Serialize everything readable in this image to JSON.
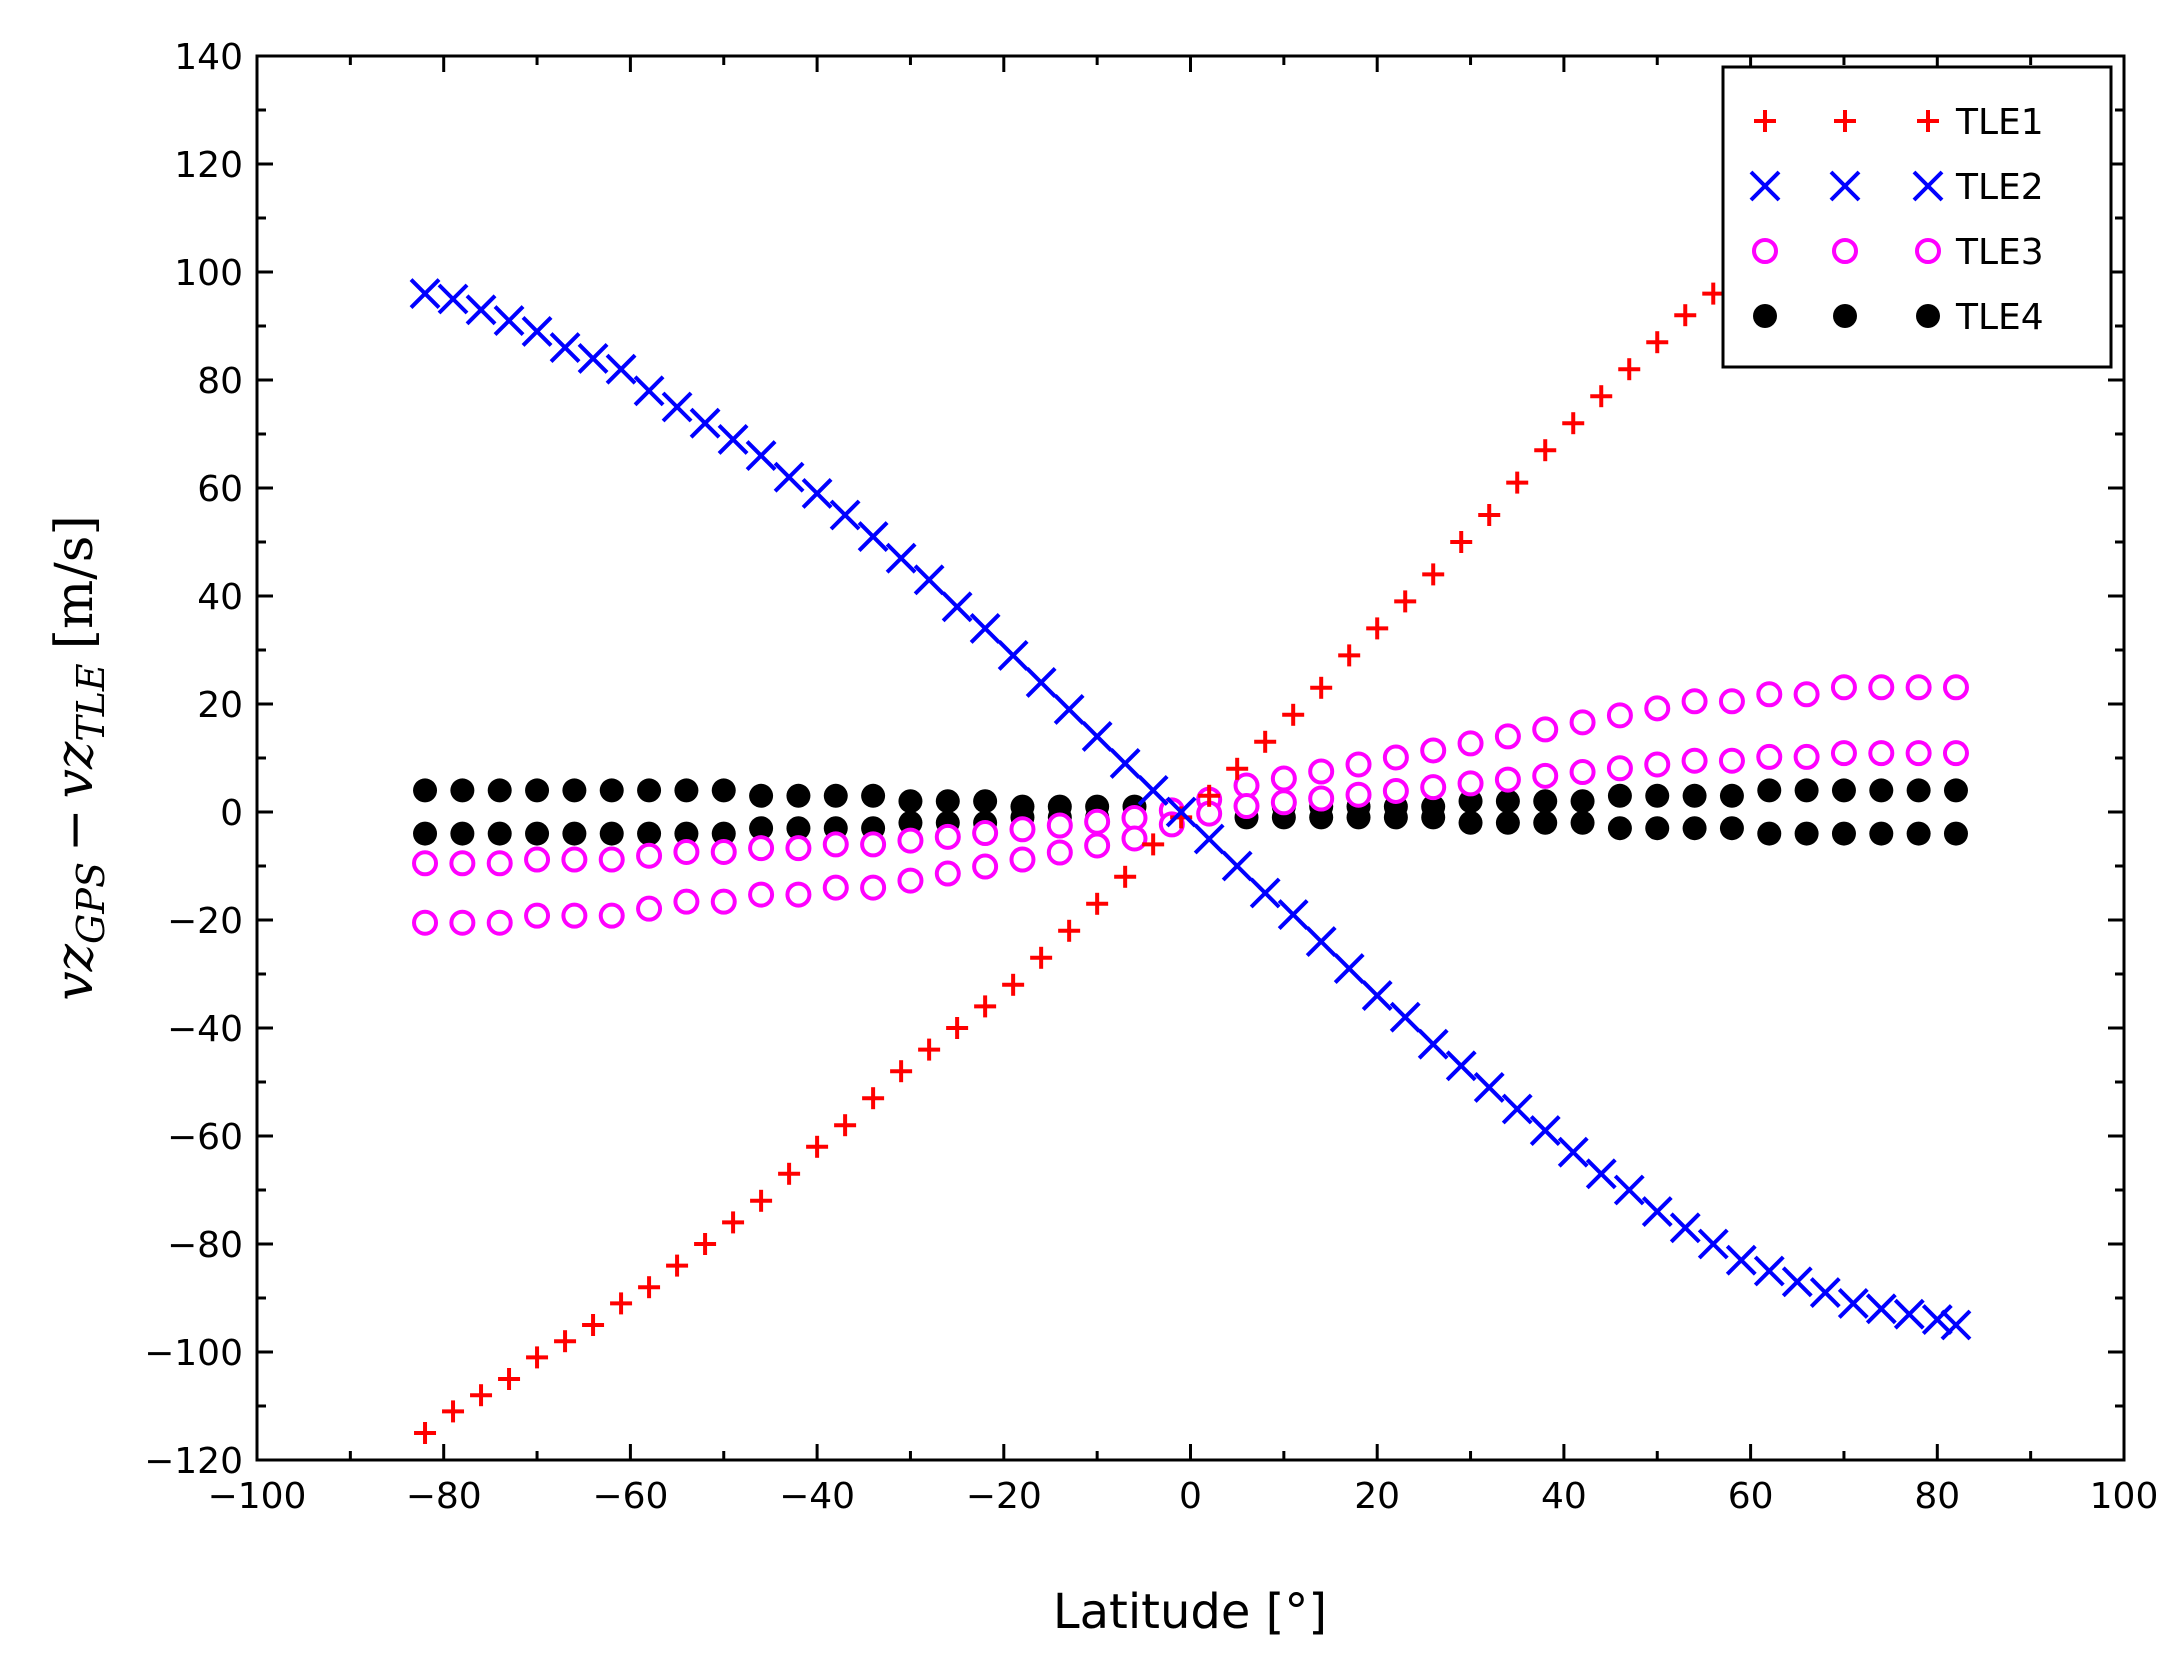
{
  "chart_data": {
    "type": "scatter",
    "xlabel": "Latitude [°]",
    "ylabel": "vz_GPS − vz_TLE [m/s]",
    "ylabel_parts": {
      "main": "vz",
      "sub1": "GPS",
      "minus": "−",
      "sub2": "TLE",
      "unit": "[m/s]"
    },
    "xlim": [
      -100,
      100
    ],
    "ylim": [
      -120,
      140
    ],
    "xticks": [
      -100,
      -80,
      -60,
      -40,
      -20,
      0,
      20,
      40,
      60,
      80,
      100
    ],
    "yticks": [
      -120,
      -100,
      -80,
      -60,
      -40,
      -20,
      0,
      20,
      40,
      60,
      80,
      100,
      120,
      140
    ],
    "xtick_labels": [
      "−100",
      "−80",
      "−60",
      "−40",
      "−20",
      "0",
      "20",
      "40",
      "60",
      "80",
      "100"
    ],
    "ytick_labels": [
      "−120",
      "−100",
      "−80",
      "−60",
      "−40",
      "−20",
      "0",
      "20",
      "40",
      "60",
      "80",
      "100",
      "120",
      "140"
    ],
    "grid": false,
    "legend_position": "top-right",
    "series": [
      {
        "name": "TLE1",
        "marker": "plus",
        "color": "#ff0000",
        "x": [
          -82,
          -79,
          -76,
          -73,
          -70,
          -67,
          -64,
          -61,
          -58,
          -55,
          -52,
          -49,
          -46,
          -43,
          -40,
          -37,
          -34,
          -31,
          -28,
          -25,
          -22,
          -19,
          -16,
          -13,
          -10,
          -7,
          -4,
          -1,
          2,
          5,
          8,
          11,
          14,
          17,
          20,
          23,
          26,
          29,
          32,
          35,
          38,
          41,
          44,
          47,
          50,
          53,
          56,
          59
        ],
        "y": [
          -115,
          -111,
          -108,
          -105,
          -101,
          -98,
          -95,
          -91,
          -88,
          -84,
          -80,
          -76,
          -72,
          -67,
          -62,
          -58,
          -53,
          -48,
          -44,
          -40,
          -36,
          -32,
          -27,
          -22,
          -17,
          -12,
          -6,
          -1,
          3,
          8,
          13,
          18,
          23,
          29,
          34,
          39,
          44,
          50,
          55,
          61,
          67,
          72,
          77,
          82,
          87,
          92,
          96,
          100
        ]
      },
      {
        "name": "TLE2",
        "marker": "x",
        "color": "#0000ff",
        "x": [
          -82,
          -79,
          -76,
          -73,
          -70,
          -67,
          -64,
          -61,
          -58,
          -55,
          -52,
          -49,
          -46,
          -43,
          -40,
          -37,
          -34,
          -31,
          -28,
          -25,
          -22,
          -19,
          -16,
          -13,
          -10,
          -7,
          -4,
          -1,
          2,
          5,
          8,
          11,
          14,
          17,
          20,
          23,
          26,
          29,
          32,
          35,
          38,
          41,
          44,
          47,
          50,
          53,
          56,
          59,
          62,
          65,
          68,
          71,
          74,
          77,
          80,
          82
        ],
        "y": [
          96,
          95,
          93,
          91,
          89,
          86,
          84,
          82,
          78,
          75,
          72,
          69,
          66,
          62,
          59,
          55,
          51,
          47,
          43,
          38,
          34,
          29,
          24,
          19,
          14,
          9,
          4,
          0,
          -5,
          -10,
          -15,
          -19,
          -24,
          -29,
          -34,
          -38,
          -43,
          -47,
          -51,
          -55,
          -59,
          -63,
          -67,
          -70,
          -74,
          -77,
          -80,
          -83,
          -85,
          -87,
          -89,
          -91,
          -92,
          -93,
          -94,
          -95
        ]
      },
      {
        "name": "TLE3",
        "marker": "circle-open",
        "color": "#ff00ff",
        "x": [
          -82,
          -78,
          -74,
          -70,
          -66,
          -62,
          -58,
          -54,
          -50,
          -46,
          -42,
          -38,
          -34,
          -30,
          -26,
          -22,
          -18,
          -14,
          -10,
          -6,
          -2,
          2,
          6,
          10,
          14,
          18,
          22,
          26,
          30,
          34,
          38,
          42,
          46,
          50,
          54,
          58,
          62,
          66,
          70,
          74,
          78,
          82
        ],
        "y": [
          -15,
          -15,
          -15,
          -14,
          -14,
          -14,
          -13,
          -12,
          -12,
          -11,
          -11,
          -10,
          -10,
          -9,
          -8,
          -7,
          -6,
          -5,
          -4,
          -3,
          -1,
          1,
          3,
          4,
          5,
          6,
          7,
          8,
          9,
          10,
          11,
          12,
          13,
          14,
          15,
          15,
          16,
          16,
          17,
          17,
          17,
          17
        ]
      },
      {
        "name": "TLE4",
        "marker": "circle-filled",
        "color": "#000000",
        "x": [
          -82,
          -78,
          -74,
          -70,
          -66,
          -62,
          -58,
          -54,
          -50,
          -46,
          -42,
          -38,
          -34,
          -30,
          -26,
          -22,
          -18,
          -14,
          -10,
          -6,
          -2,
          2,
          6,
          10,
          14,
          18,
          22,
          26,
          30,
          34,
          38,
          42,
          46,
          50,
          54,
          58,
          62,
          66,
          70,
          74,
          78,
          82
        ],
        "y": [
          0,
          0,
          0,
          0,
          0,
          0,
          0,
          0,
          0,
          0,
          0,
          0,
          0,
          0,
          0,
          0,
          0,
          0,
          0,
          0,
          0,
          0,
          0,
          0,
          0,
          0,
          0,
          0,
          0,
          0,
          0,
          0,
          0,
          0,
          0,
          0,
          0,
          0,
          0,
          0,
          0,
          0
        ],
        "spread": [
          4,
          4,
          4,
          4,
          4,
          4,
          4,
          4,
          4,
          3,
          3,
          3,
          3,
          2,
          2,
          2,
          1,
          1,
          1,
          1,
          0,
          0,
          1,
          1,
          1,
          1,
          1,
          1,
          2,
          2,
          2,
          2,
          3,
          3,
          3,
          3,
          4,
          4,
          4,
          4,
          4,
          4
        ]
      }
    ]
  },
  "colors": {
    "axis": "#000000",
    "background": "#ffffff"
  }
}
